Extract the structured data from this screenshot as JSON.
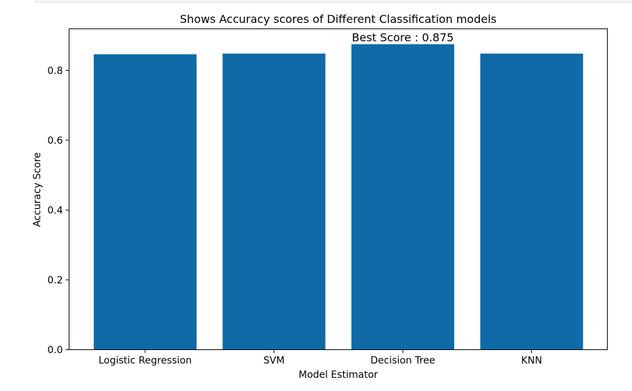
{
  "chart_data": {
    "type": "bar",
    "title": "Shows Accuracy scores of Different Classification models",
    "xlabel": "Model Estimator",
    "ylabel": "Accuracy Score",
    "categories": [
      "Logistic Regression",
      "SVM",
      "Decision Tree",
      "KNN"
    ],
    "values": [
      0.846,
      0.848,
      0.875,
      0.848
    ],
    "ylim": [
      0,
      0.919
    ],
    "yticks": [
      0.0,
      0.2,
      0.4,
      0.6,
      0.8
    ],
    "ytick_labels": [
      "0.0",
      "0.2",
      "0.4",
      "0.6",
      "0.8"
    ],
    "grid": false,
    "legend": "none",
    "bar_color": "#0f6aa7",
    "annotation": {
      "text": "Best Score : 0.875",
      "category": "Decision Tree",
      "value": 0.875
    }
  }
}
